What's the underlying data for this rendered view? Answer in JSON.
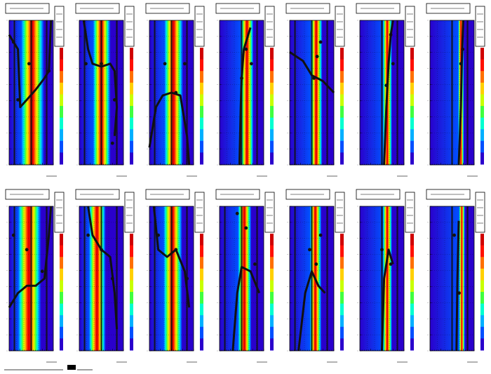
{
  "figure": {
    "footer_text": "",
    "colors": {
      "frame": "#000000",
      "overlay_curve": "#111111",
      "palette": [
        "#2a00cc",
        "#0050ff",
        "#00b0ff",
        "#00ffd0",
        "#40ff40",
        "#c8ff00",
        "#ffd000",
        "#ff7000",
        "#ff1000",
        "#d00000"
      ]
    }
  },
  "chart_data": [
    {
      "type": "heatmap",
      "panel": "r1c1",
      "title": "",
      "xlabel": "",
      "ylabel": "",
      "colormap": "rainbow",
      "overlay": "line"
    },
    {
      "type": "heatmap",
      "panel": "r1c2",
      "title": "",
      "xlabel": "",
      "ylabel": "",
      "colormap": "rainbow",
      "overlay": "line"
    },
    {
      "type": "heatmap",
      "panel": "r1c3",
      "title": "",
      "xlabel": "",
      "ylabel": "",
      "colormap": "rainbow",
      "overlay": "line"
    },
    {
      "type": "heatmap",
      "panel": "r1c4",
      "title": "",
      "xlabel": "",
      "ylabel": "",
      "colormap": "rainbow",
      "overlay": "line"
    },
    {
      "type": "heatmap",
      "panel": "r1c5",
      "title": "",
      "xlabel": "",
      "ylabel": "",
      "colormap": "rainbow",
      "overlay": "line"
    },
    {
      "type": "heatmap",
      "panel": "r1c6",
      "title": "",
      "xlabel": "",
      "ylabel": "",
      "colormap": "rainbow",
      "overlay": "line"
    },
    {
      "type": "heatmap",
      "panel": "r1c7",
      "title": "",
      "xlabel": "",
      "ylabel": "",
      "colormap": "rainbow",
      "overlay": "line"
    },
    {
      "type": "heatmap",
      "panel": "r2c1",
      "title": "",
      "xlabel": "",
      "ylabel": "",
      "colormap": "rainbow",
      "overlay": "line"
    },
    {
      "type": "heatmap",
      "panel": "r2c2",
      "title": "",
      "xlabel": "",
      "ylabel": "",
      "colormap": "rainbow",
      "overlay": "line"
    },
    {
      "type": "heatmap",
      "panel": "r2c3",
      "title": "",
      "xlabel": "",
      "ylabel": "",
      "colormap": "rainbow",
      "overlay": "line"
    },
    {
      "type": "heatmap",
      "panel": "r2c4",
      "title": "",
      "xlabel": "",
      "ylabel": "",
      "colormap": "rainbow",
      "overlay": "line"
    },
    {
      "type": "heatmap",
      "panel": "r2c5",
      "title": "",
      "xlabel": "",
      "ylabel": "",
      "colormap": "rainbow",
      "overlay": "line"
    },
    {
      "type": "heatmap",
      "panel": "r2c6",
      "title": "",
      "xlabel": "",
      "ylabel": "",
      "colormap": "rainbow",
      "overlay": "line"
    },
    {
      "type": "heatmap",
      "panel": "r2c7",
      "title": "",
      "xlabel": "",
      "ylabel": "",
      "colormap": "rainbow",
      "overlay": "line"
    }
  ]
}
